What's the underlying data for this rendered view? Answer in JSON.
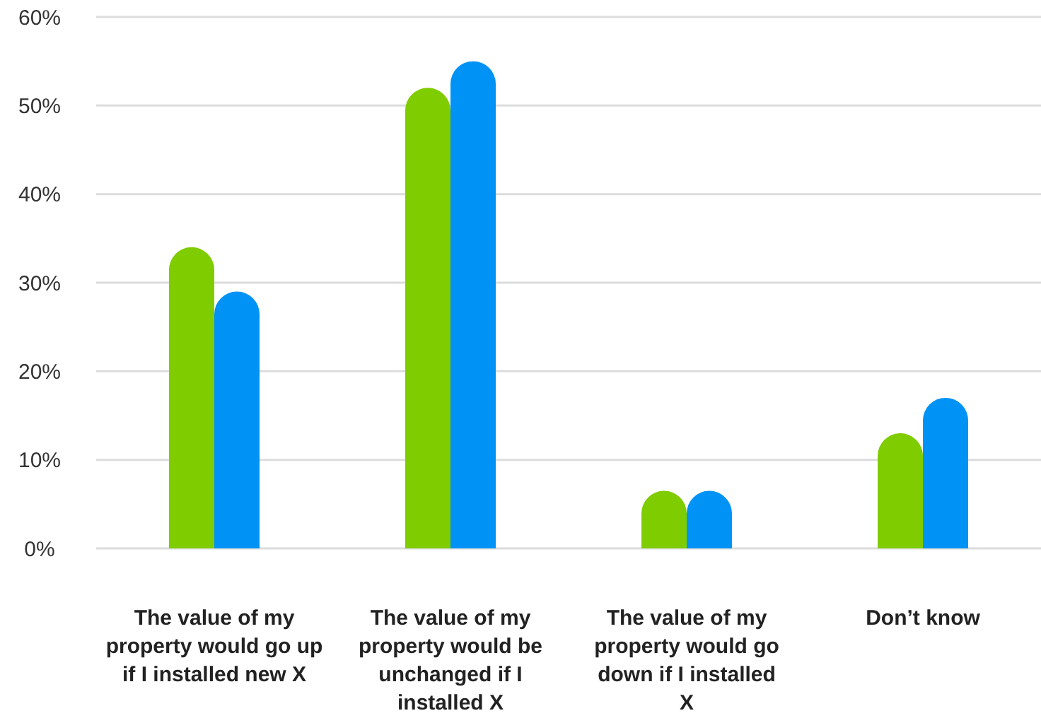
{
  "chart_data": {
    "type": "bar",
    "categories": [
      "The value of my property would go up if I installed new X",
      "The value of my property would be unchanged if I installed X",
      "The value of my property would go down if I installed X",
      "Don’t know"
    ],
    "series": [
      {
        "color": "#7fcc00",
        "values": [
          34,
          52,
          6.5,
          13
        ]
      },
      {
        "color": "#0093f5",
        "values": [
          29,
          55,
          6.5,
          17
        ]
      }
    ],
    "ylim": [
      0,
      60
    ],
    "yticks": [
      {
        "value": 0,
        "label": "0%"
      },
      {
        "value": 10,
        "label": "10%"
      },
      {
        "value": 20,
        "label": "20%"
      },
      {
        "value": 30,
        "label": "30%"
      },
      {
        "value": 40,
        "label": "40%"
      },
      {
        "value": 50,
        "label": "50%"
      },
      {
        "value": 60,
        "label": "60%"
      }
    ],
    "grid": "y"
  }
}
